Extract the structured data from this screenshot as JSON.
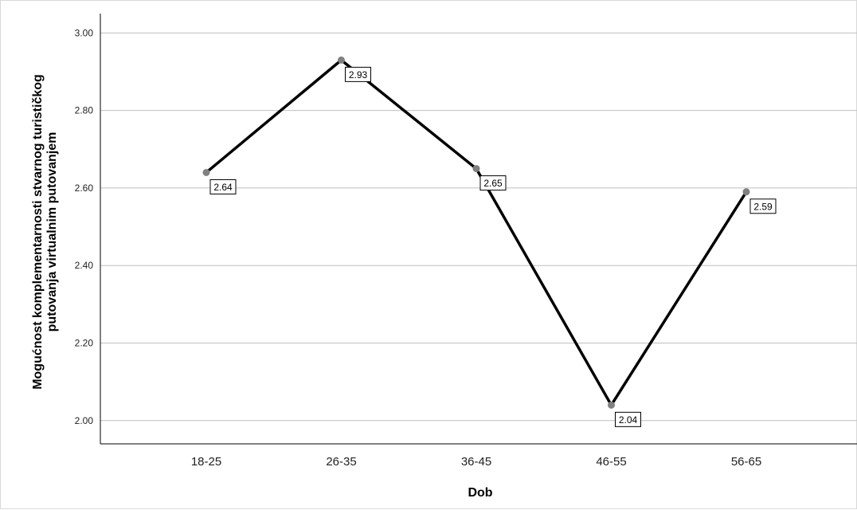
{
  "chart_data": {
    "type": "line",
    "title": "",
    "xlabel": "Dob",
    "ylabel_lines": [
      "Mogućnost komplementarnosti stvarnog turističkog",
      "putovanja virtualnim putovanjem"
    ],
    "categories": [
      "18-25",
      "26-35",
      "36-45",
      "46-55",
      "56-65"
    ],
    "values": [
      2.64,
      2.93,
      2.65,
      2.04,
      2.59
    ],
    "data_labels": [
      "2.64",
      "2.93",
      "2.65",
      "2.04",
      "2.59"
    ],
    "y_ticks": [
      "2.00",
      "2.20",
      "2.40",
      "2.60",
      "2.80",
      "3.00"
    ],
    "ylim": [
      1.94,
      3.05
    ],
    "grid": true,
    "legend": "none",
    "colors": {
      "line": "#000000",
      "marker": "#808080",
      "grid": "#bfbfbf",
      "axis": "#000000"
    }
  }
}
